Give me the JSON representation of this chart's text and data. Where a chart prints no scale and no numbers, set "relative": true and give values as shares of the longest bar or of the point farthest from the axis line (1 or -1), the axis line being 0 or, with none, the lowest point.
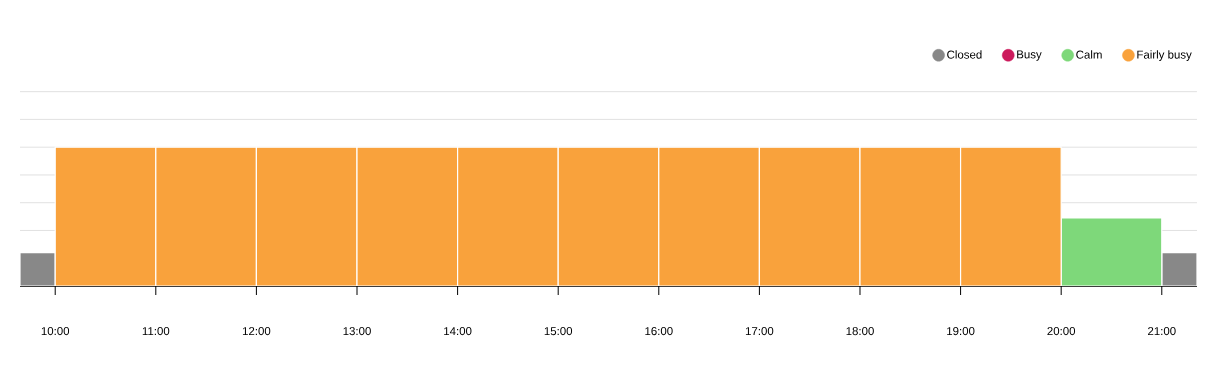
{
  "chart_data": {
    "type": "bar",
    "relative": true,
    "x": [
      9.825,
      10.5,
      11.5,
      12.5,
      13.5,
      14.5,
      15.5,
      16.5,
      17.5,
      18.5,
      19.5,
      20.5,
      21.175
    ],
    "xlim": [
      9.65,
      21.35
    ],
    "xticks": [
      {
        "value": 10,
        "label": "10:00"
      },
      {
        "value": 11,
        "label": "11:00"
      },
      {
        "value": 12,
        "label": "12:00"
      },
      {
        "value": 13,
        "label": "13:00"
      },
      {
        "value": 14,
        "label": "14:00"
      },
      {
        "value": 15,
        "label": "15:00"
      },
      {
        "value": 16,
        "label": "16:00"
      },
      {
        "value": 17,
        "label": "17:00"
      },
      {
        "value": 18,
        "label": "18:00"
      },
      {
        "value": 19,
        "label": "19:00"
      },
      {
        "value": 20,
        "label": "20:00"
      },
      {
        "value": 21,
        "label": "21:00"
      }
    ],
    "series": [
      {
        "name": "Closed",
        "color": "#888888",
        "values": [
          0.24,
          null,
          null,
          null,
          null,
          null,
          null,
          null,
          null,
          null,
          null,
          null,
          0.24
        ]
      },
      {
        "name": "Busy",
        "color": "#cc1a5c",
        "values": [
          null,
          null,
          null,
          null,
          null,
          null,
          null,
          null,
          null,
          null,
          null,
          null,
          null
        ]
      },
      {
        "name": "Calm",
        "color": "#7ed87a",
        "values": [
          null,
          null,
          null,
          null,
          null,
          null,
          null,
          null,
          null,
          null,
          null,
          0.49,
          null
        ]
      },
      {
        "name": "Fairly busy",
        "color": "#f9a23c",
        "values": [
          null,
          1,
          1,
          1,
          1,
          1,
          1,
          1,
          1,
          1,
          1,
          null,
          null
        ]
      }
    ],
    "grid": "y",
    "legend": "top right",
    "tick_labels": "x"
  }
}
